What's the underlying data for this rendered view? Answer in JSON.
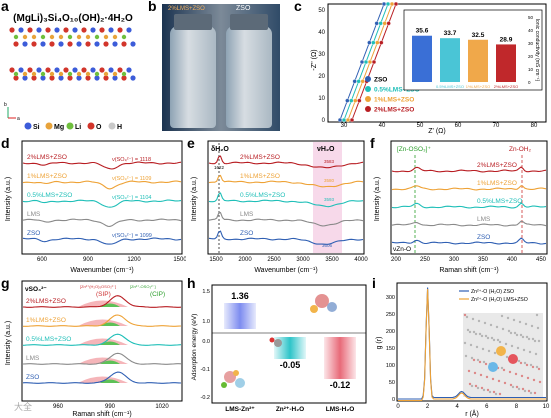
{
  "panel_a": {
    "label": "a",
    "formula": "(MgLi)₃Si₄O₁₀(OH)₂·4H₂O",
    "legend": [
      {
        "sym": "Si",
        "color": "#3c5cd9"
      },
      {
        "sym": "Mg",
        "color": "#e8a33b"
      },
      {
        "sym": "Li",
        "color": "#6fbf3d"
      },
      {
        "sym": "O",
        "color": "#d2352b"
      },
      {
        "sym": "H",
        "color": "#c9c9c9"
      }
    ],
    "axes_a": "a",
    "axes_b": "b"
  },
  "panel_b": {
    "label": "b",
    "jar_left": "2%LMS+ZSO",
    "jar_right": "ZSO"
  },
  "panel_c": {
    "label": "c",
    "xlabel": "Z' (Ω)",
    "ylabel": "-Z'' (Ω)",
    "xticks": [
      "30",
      "40",
      "50",
      "60",
      "70",
      "80"
    ],
    "yticks": [
      "0",
      "10",
      "20",
      "30",
      "40",
      "50"
    ],
    "legend": [
      "ZSO",
      "0.5%LMS+ZSO",
      "1%LMS+ZSO",
      "2%LMS+ZSO"
    ],
    "inset_ylabel": "Ionic conductivity (mS cm⁻¹)",
    "inset_yticks": [
      "0",
      "10",
      "20",
      "30",
      "40",
      "50"
    ],
    "inset_values": [
      "35.6",
      "33.7",
      "32.5",
      "28.9"
    ],
    "inset_cats": [
      "ZSO",
      "0.5%LMS+ZSO",
      "1%LMS+ZSO",
      "2%LMS+ZSO"
    ]
  },
  "panel_d": {
    "label": "d",
    "ylabel": "Intensity (a.u.)",
    "xlabel": "Wavenumber (cm⁻¹)",
    "xticks": [
      "600",
      "900",
      "1200",
      "1500"
    ],
    "curves": [
      {
        "name": "2%LMS+ZSO",
        "peak": "ν(SO₄²⁻) = 1118",
        "color": "#b81d22"
      },
      {
        "name": "1%LMS+ZSO",
        "peak": "ν(SO₄²⁻) = 1109",
        "color": "#eea236"
      },
      {
        "name": "0.5%LMS+ZSO",
        "peak": "ν(SO₄²⁻) = 1104",
        "color": "#1fbfb8"
      },
      {
        "name": "LMS",
        "peak": "",
        "color": "#8a8a8a"
      },
      {
        "name": "ZSO",
        "peak": "ν(SO₄²⁻) = 1099",
        "color": "#2f5fb3"
      }
    ]
  },
  "panel_e": {
    "label": "e",
    "ylabel": "Intensity (a.u.)",
    "xlabel": "Wavenumber (cm⁻¹)",
    "xticks": [
      "1500",
      "2000",
      "2500",
      "3000",
      "3500",
      "4000"
    ],
    "delta": "δH₂O",
    "nu": "νH₂O",
    "marks": [
      "1622",
      "3583",
      "3580",
      "3593",
      "3606"
    ],
    "curves": [
      {
        "name": "2%LMS+ZSO",
        "color": "#b81d22"
      },
      {
        "name": "1%LMS+ZSO",
        "color": "#eea236"
      },
      {
        "name": "0.5%LMS+ZSO",
        "color": "#1fbfb8"
      },
      {
        "name": "LMS",
        "color": "#8a8a8a"
      },
      {
        "name": "ZSO",
        "color": "#2f5fb3"
      }
    ]
  },
  "panel_f": {
    "label": "f",
    "ylabel": "Intensity (a.u.)",
    "xlabel": "Raman shift (cm⁻¹)",
    "xticks": [
      "200",
      "250",
      "300",
      "350",
      "400",
      "450"
    ],
    "mark_left": "[Zn-OSO₃]⁺",
    "mark_right": "Zn-OH₂",
    "bottom_mark": "νZn-O",
    "curves": [
      {
        "name": "2%LMS+ZSO",
        "color": "#b81d22"
      },
      {
        "name": "1%LMS+ZSO",
        "color": "#eea236"
      },
      {
        "name": "0.5%LMS+ZSO",
        "color": "#1fbfb8"
      },
      {
        "name": "LMS",
        "color": "#8a8a8a"
      },
      {
        "name": "ZSO",
        "color": "#2f5fb3"
      }
    ]
  },
  "panel_g": {
    "label": "g",
    "ylabel": "Intensity (a.u.)",
    "xlabel": "Raman shift (cm⁻¹)",
    "xticks": [
      "960",
      "990",
      "1020"
    ],
    "nu": "νSO₄²⁻",
    "sip_formula": "[Zn²⁺(H₂O)₅OSO₃²⁻]",
    "cip_formula": "[Zn²⁺-OSO₃²⁻]",
    "sip": "(SIP)",
    "cip": "(CIP)",
    "curves": [
      {
        "name": "2%LMS+ZSO",
        "color": "#b81d22"
      },
      {
        "name": "1%LMS+ZSO",
        "color": "#eea236"
      },
      {
        "name": "0.5%LMS+ZSO",
        "color": "#1fbfb8"
      },
      {
        "name": "LMS",
        "color": "#8a8a8a"
      },
      {
        "name": "ZSO",
        "color": "#2f5fb3"
      }
    ]
  },
  "panel_h": {
    "label": "h",
    "ylabel": "Adsorption energy (eV)",
    "yticks": [
      "1.5",
      "1.0",
      "0.0",
      "-0.1",
      "-0.2"
    ],
    "bars": [
      {
        "name": "LMS-Zn²⁺",
        "value": "1.36"
      },
      {
        "name": "Zn²⁺-H₂O",
        "value": "-0.05"
      },
      {
        "name": "LMS-H₂O",
        "value": "-0.12"
      }
    ]
  },
  "panel_i": {
    "label": "i",
    "ylabel": "g (r)",
    "xlabel": "r (Å)",
    "xticks": [
      "0",
      "2",
      "4",
      "6",
      "8",
      "10"
    ],
    "yticks": [
      "0",
      "50",
      "100",
      "150",
      "200",
      "250",
      "300"
    ],
    "legend": [
      {
        "text": "Zn²⁺-O (H₂O)  ZSO",
        "color": "#2f5fb3"
      },
      {
        "text": "Zn²⁺-O (H₂O)  LMS+ZSO",
        "color": "#eea236"
      }
    ]
  },
  "watermark": "大全"
}
